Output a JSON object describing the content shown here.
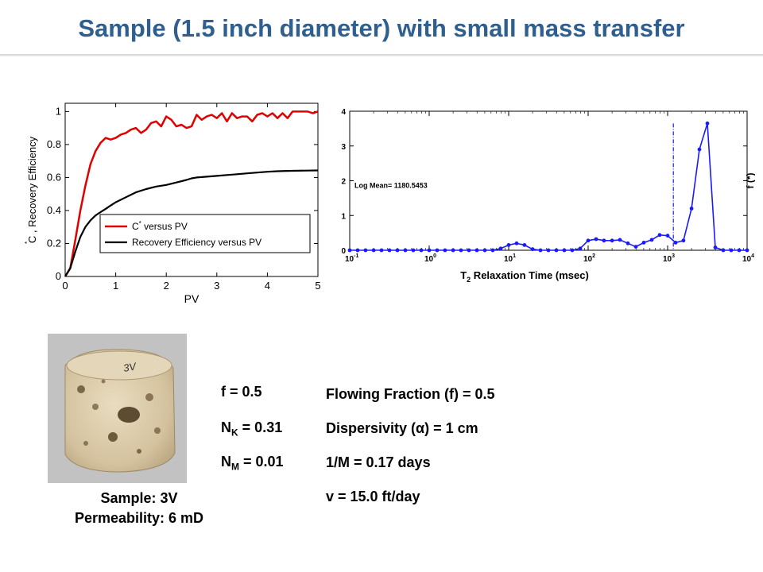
{
  "slide": {
    "title": "Sample (1.5 inch diameter) with small mass transfer"
  },
  "sample": {
    "id_label": "Sample: 3V",
    "permeability_label": "Permeability: 6 mD",
    "photo_text": "3V"
  },
  "params_left": {
    "f": "f = 0.5",
    "nk_main": "N",
    "nk_sub": "K",
    "nk_value": " = 0.31",
    "nm_main": "N",
    "nm_sub": "M",
    "nm_value": " = 0.01"
  },
  "params_right": {
    "flowing_fraction": "Flowing Fraction (f) = 0.5",
    "dispersivity": "Dispersivity (α) = 1 cm",
    "mass_transfer": "1/M = 0.17 days",
    "velocity": "v  = 15.0 ft/day"
  },
  "colors": {
    "title": "#2f5f8f",
    "red_series": "#e00000",
    "black_series": "#000000",
    "blue_series": "#1a1aff"
  },
  "chart_data": [
    {
      "type": "line",
      "xlabel": "PV",
      "ylabel_star": "*",
      "ylabel": "C , Recovery Efficiency",
      "xlim": [
        0,
        5
      ],
      "ylim": [
        0,
        1.05
      ],
      "xticks": [
        0,
        1,
        2,
        3,
        4,
        5
      ],
      "yticks": [
        0,
        0.2,
        0.4,
        0.6,
        0.8,
        1
      ],
      "xtick_labels": [
        "0",
        "1",
        "2",
        "3",
        "4",
        "5"
      ],
      "ytick_labels": [
        "0",
        "0.2",
        "0.4",
        "0.6",
        "0.8",
        "1"
      ],
      "legend_placement": "bottom-right",
      "series": [
        {
          "name": "C* versus PV",
          "legend_main": "C",
          "legend_sup": "*",
          "legend_rest": " versus PV",
          "color": "#e00000",
          "x": [
            0,
            0.1,
            0.2,
            0.3,
            0.4,
            0.5,
            0.6,
            0.7,
            0.8,
            0.9,
            1.0,
            1.1,
            1.2,
            1.3,
            1.4,
            1.5,
            1.6,
            1.7,
            1.8,
            1.9,
            2.0,
            2.1,
            2.2,
            2.3,
            2.4,
            2.5,
            2.6,
            2.7,
            2.8,
            2.9,
            3.0,
            3.1,
            3.2,
            3.3,
            3.4,
            3.5,
            3.6,
            3.7,
            3.8,
            3.9,
            4.0,
            4.1,
            4.2,
            4.3,
            4.4,
            4.5,
            4.6,
            4.7,
            4.8,
            4.9,
            5.0
          ],
          "y": [
            0,
            0.05,
            0.22,
            0.4,
            0.55,
            0.68,
            0.76,
            0.81,
            0.84,
            0.83,
            0.84,
            0.86,
            0.87,
            0.89,
            0.9,
            0.87,
            0.89,
            0.93,
            0.94,
            0.91,
            0.97,
            0.95,
            0.91,
            0.92,
            0.9,
            0.91,
            0.98,
            0.95,
            0.97,
            0.98,
            0.96,
            0.99,
            0.94,
            0.99,
            0.96,
            0.97,
            0.97,
            0.94,
            0.98,
            0.99,
            0.97,
            0.99,
            0.96,
            0.99,
            0.96,
            1.0,
            1.0,
            1.0,
            1.0,
            0.99,
            1.0
          ]
        },
        {
          "name": "Recovery Efficiency versus PV",
          "color": "#000000",
          "x": [
            0,
            0.1,
            0.2,
            0.3,
            0.4,
            0.5,
            0.6,
            0.7,
            0.8,
            0.9,
            1.0,
            1.2,
            1.4,
            1.6,
            1.8,
            2.0,
            2.2,
            2.4,
            2.5,
            2.6,
            2.8,
            3.0,
            3.2,
            3.4,
            3.6,
            3.8,
            4.0,
            4.2,
            4.4,
            4.6,
            4.8,
            5.0
          ],
          "y": [
            0,
            0.05,
            0.15,
            0.24,
            0.3,
            0.34,
            0.37,
            0.39,
            0.41,
            0.43,
            0.45,
            0.48,
            0.51,
            0.53,
            0.545,
            0.555,
            0.57,
            0.585,
            0.595,
            0.6,
            0.605,
            0.61,
            0.615,
            0.62,
            0.625,
            0.63,
            0.635,
            0.638,
            0.64,
            0.641,
            0.642,
            0.643
          ]
        }
      ]
    },
    {
      "type": "line",
      "xscale": "log",
      "xlabel": "T",
      "xlabel_sub": "2",
      "xlabel_rest": " Relaxation Time (msec)",
      "ylabel": "f (*)",
      "xlim": [
        0.1,
        10000
      ],
      "ylim": [
        0,
        4
      ],
      "ytick_labels": [
        "0",
        "1",
        "2",
        "3",
        "4"
      ],
      "xtick_base": "10",
      "xtick_exps": [
        "-1",
        "0",
        "1",
        "2",
        "3",
        "4"
      ],
      "annotation": "Log Mean= 1180.5453",
      "vline_x": 1180.5453,
      "series": [
        {
          "color": "#1a1aff",
          "x": [
            0.1,
            0.126,
            0.158,
            0.2,
            0.251,
            0.316,
            0.398,
            0.501,
            0.631,
            0.794,
            1,
            1.26,
            1.58,
            2,
            2.51,
            3.16,
            3.98,
            5.01,
            6.31,
            7.94,
            10,
            12.6,
            15.8,
            20,
            25.1,
            31.6,
            39.8,
            50.1,
            63.1,
            79.4,
            100,
            126,
            158,
            200,
            251,
            316,
            398,
            501,
            631,
            794,
            1000,
            1260,
            1580,
            2000,
            2510,
            3160,
            3980,
            5010,
            6310,
            7940,
            10000
          ],
          "y": [
            0,
            0,
            0,
            0,
            0,
            0,
            0,
            0,
            0,
            0,
            0,
            0,
            0,
            0,
            0,
            0,
            0,
            0,
            0,
            0.05,
            0.15,
            0.2,
            0.15,
            0.03,
            0,
            0,
            0,
            0,
            0,
            0.05,
            0.28,
            0.32,
            0.28,
            0.28,
            0.3,
            0.2,
            0.1,
            0.22,
            0.3,
            0.44,
            0.42,
            0.22,
            0.28,
            1.2,
            2.9,
            3.65,
            0.08,
            0,
            0,
            0,
            0
          ]
        }
      ]
    }
  ]
}
